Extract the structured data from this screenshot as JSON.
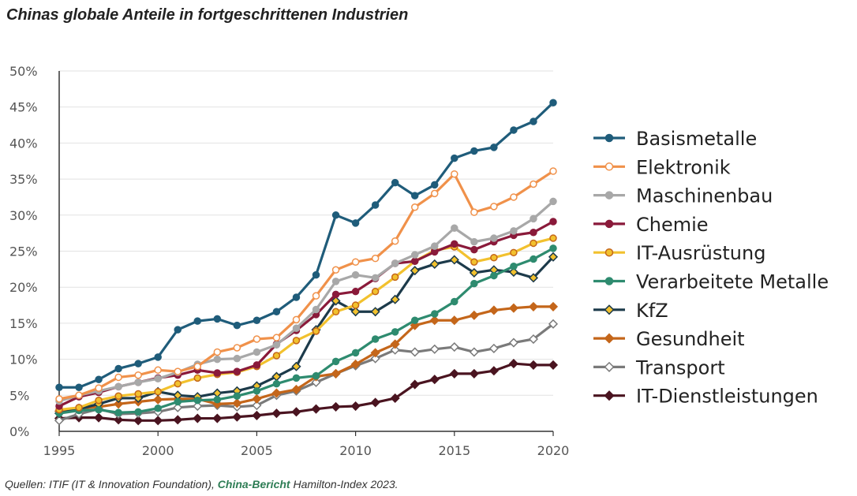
{
  "title": "Chinas globale Anteile in fortgeschrittenen Industrien",
  "source": {
    "prefix": "Quellen: ITIF (IT & Innovation Foundation), ",
    "highlight": "China-Bericht",
    "suffix": " Hamilton-Index 2023."
  },
  "chart_data": {
    "type": "line",
    "title": "Chinas globale Anteile in fortgeschrittenen Industrien",
    "xlabel": "",
    "ylabel": "",
    "x": [
      1995,
      1996,
      1997,
      1998,
      1999,
      2000,
      2001,
      2002,
      2003,
      2004,
      2005,
      2006,
      2007,
      2008,
      2009,
      2010,
      2011,
      2012,
      2013,
      2014,
      2015,
      2016,
      2017,
      2018,
      2019,
      2020
    ],
    "xlim": [
      1995,
      2020
    ],
    "ylim": [
      0,
      50
    ],
    "x_ticks": [
      "1995",
      "2000",
      "2005",
      "2010",
      "2015",
      "2020"
    ],
    "y_ticks": [
      "0%",
      "5%",
      "10%",
      "15%",
      "20%",
      "25%",
      "30%",
      "35%",
      "40%",
      "45%",
      "50%"
    ],
    "grid": "horizontal",
    "legend_position": "right",
    "series": [
      {
        "name": "Basismetalle",
        "color": "#1f5c7a",
        "marker": "circle-filled",
        "values": [
          6.1,
          6.1,
          7.2,
          8.7,
          9.4,
          10.3,
          14.1,
          15.3,
          15.6,
          14.7,
          15.4,
          16.6,
          18.6,
          21.7,
          30.0,
          28.9,
          31.4,
          34.5,
          32.7,
          34.2,
          37.9,
          38.9,
          39.4,
          41.8,
          43.0,
          45.6
        ]
      },
      {
        "name": "Elektronik",
        "color": "#f0914a",
        "marker": "circle-open",
        "values": [
          4.5,
          5.0,
          6.0,
          7.5,
          7.8,
          8.5,
          8.3,
          9.0,
          11.0,
          11.6,
          12.8,
          13.0,
          15.5,
          18.8,
          22.4,
          23.5,
          24.0,
          26.4,
          31.1,
          33.0,
          35.7,
          30.4,
          31.2,
          32.5,
          34.3,
          36.1
        ]
      },
      {
        "name": "Maschinenbau",
        "color": "#a8a8a8",
        "marker": "circle-filled",
        "values": [
          4.2,
          5.0,
          5.6,
          6.2,
          6.8,
          7.3,
          8.2,
          9.3,
          10.0,
          10.1,
          11.0,
          12.0,
          14.3,
          16.9,
          20.8,
          21.7,
          21.3,
          23.3,
          24.5,
          25.7,
          28.2,
          26.3,
          26.8,
          27.8,
          29.5,
          31.9
        ]
      },
      {
        "name": "Chemie",
        "color": "#8a1a3a",
        "marker": "circle-filled",
        "values": [
          3.5,
          4.8,
          5.4,
          6.2,
          6.8,
          7.4,
          7.8,
          8.5,
          8.1,
          8.3,
          9.2,
          12.1,
          14.0,
          16.2,
          19.0,
          19.4,
          21.2,
          23.3,
          23.6,
          24.9,
          26.0,
          25.2,
          26.3,
          27.2,
          27.6,
          29.1
        ]
      },
      {
        "name": "IT-Ausrüstung",
        "color": "#f2c12e",
        "marker": "circle-orange",
        "values": [
          3.0,
          3.3,
          4.3,
          4.9,
          5.2,
          5.5,
          6.6,
          7.4,
          7.9,
          8.2,
          9.0,
          10.5,
          12.6,
          13.9,
          16.6,
          17.5,
          19.4,
          21.4,
          23.6,
          25.1,
          25.6,
          23.5,
          24.1,
          24.8,
          26.1,
          26.8
        ]
      },
      {
        "name": "Verarbeitete Metalle",
        "color": "#2e8b6f",
        "marker": "circle-filled",
        "values": [
          2.5,
          2.9,
          3.0,
          2.6,
          2.7,
          3.2,
          4.1,
          4.3,
          4.4,
          4.9,
          5.6,
          6.6,
          7.4,
          7.7,
          9.7,
          10.9,
          12.8,
          13.8,
          15.4,
          16.3,
          18.0,
          20.5,
          21.6,
          22.9,
          23.9,
          25.4
        ]
      },
      {
        "name": "KfZ",
        "color": "#1c3a4a",
        "marker": "diamond-gold",
        "values": [
          2.5,
          3.1,
          3.8,
          4.6,
          4.6,
          5.5,
          5.0,
          4.8,
          5.3,
          5.6,
          6.3,
          7.6,
          9.0,
          14.1,
          18.1,
          16.6,
          16.6,
          18.3,
          22.3,
          23.2,
          23.8,
          22.0,
          22.4,
          22.1,
          21.3,
          24.2
        ]
      },
      {
        "name": "Gesundheit",
        "color": "#c4661a",
        "marker": "diamond-filled",
        "values": [
          2.8,
          3.2,
          3.4,
          3.8,
          4.1,
          4.4,
          4.5,
          4.5,
          3.8,
          3.9,
          4.5,
          5.3,
          5.8,
          7.6,
          8.0,
          9.3,
          10.9,
          12.1,
          14.7,
          15.4,
          15.4,
          16.1,
          16.8,
          17.1,
          17.3,
          17.3
        ]
      },
      {
        "name": "Transport",
        "color": "#7a7a7a",
        "marker": "diamond-open",
        "values": [
          1.5,
          2.4,
          3.1,
          2.4,
          2.5,
          2.7,
          3.3,
          3.5,
          3.6,
          3.4,
          3.6,
          5.0,
          5.6,
          6.8,
          8.0,
          9.1,
          10.1,
          11.3,
          11.0,
          11.4,
          11.7,
          11.0,
          11.5,
          12.3,
          12.8,
          14.9
        ]
      },
      {
        "name": "IT-Dienstleistungen",
        "color": "#4a1420",
        "marker": "diamond-filled",
        "values": [
          1.8,
          1.9,
          1.9,
          1.6,
          1.5,
          1.5,
          1.6,
          1.8,
          1.8,
          2.0,
          2.2,
          2.5,
          2.7,
          3.1,
          3.4,
          3.5,
          4.0,
          4.6,
          6.5,
          7.2,
          8.0,
          8.0,
          8.4,
          9.4,
          9.2,
          9.2
        ]
      }
    ]
  }
}
